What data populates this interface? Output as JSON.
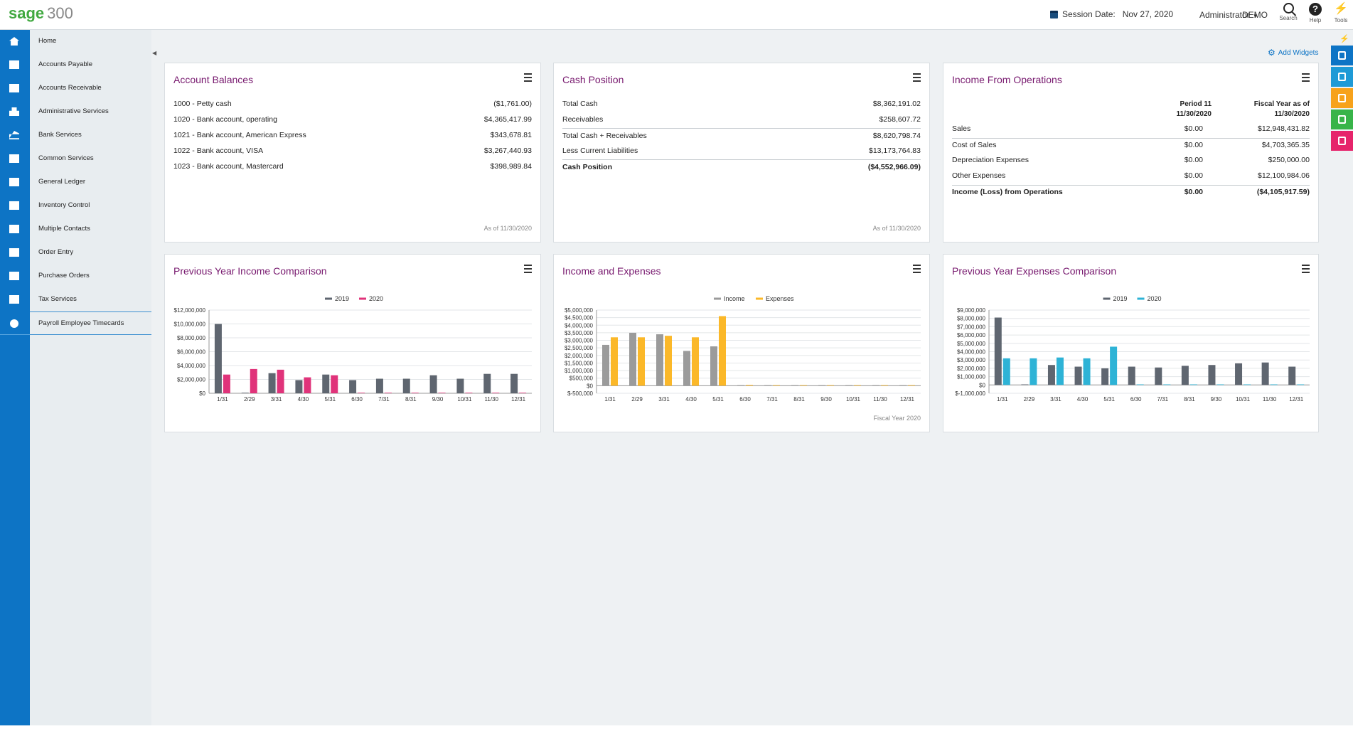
{
  "header": {
    "logo_brand": "sage",
    "logo_number": "300",
    "session_label": "Session Date:",
    "session_date": "Nov 27, 2020",
    "user": "Administrator",
    "company": "DEMO",
    "search_label": "Search",
    "help_label": "Help",
    "tools_label": "Tools"
  },
  "sidebar": {
    "items": [
      {
        "label": "Home",
        "icon": "home-icon"
      },
      {
        "label": "Accounts Payable",
        "icon": "accounts-payable-icon"
      },
      {
        "label": "Accounts Receivable",
        "icon": "accounts-receivable-icon"
      },
      {
        "label": "Administrative Services",
        "icon": "lock-icon"
      },
      {
        "label": "Bank Services",
        "icon": "bank-icon"
      },
      {
        "label": "Common Services",
        "icon": "briefcase-icon"
      },
      {
        "label": "General Ledger",
        "icon": "folder-icon"
      },
      {
        "label": "Inventory Control",
        "icon": "inventory-icon"
      },
      {
        "label": "Multiple Contacts",
        "icon": "contacts-icon"
      },
      {
        "label": "Order Entry",
        "icon": "order-entry-icon"
      },
      {
        "label": "Purchase Orders",
        "icon": "purchase-orders-icon"
      },
      {
        "label": "Tax Services",
        "icon": "tax-icon"
      },
      {
        "label": "Payroll Employee Timecards",
        "icon": "clock-icon"
      }
    ]
  },
  "main": {
    "add_widgets": "Add Widgets"
  },
  "widgets": {
    "account_balances": {
      "title": "Account Balances",
      "rows": [
        {
          "label": "1000 - Petty cash",
          "amount": "($1,761.00)"
        },
        {
          "label": "1020 - Bank account, operating",
          "amount": "$4,365,417.99"
        },
        {
          "label": "1021 - Bank account, American Express",
          "amount": "$343,678.81"
        },
        {
          "label": "1022 - Bank account, VISA",
          "amount": "$3,267,440.93"
        },
        {
          "label": "1023 - Bank account, Mastercard",
          "amount": "$398,989.84"
        }
      ],
      "footer": "As of 11/30/2020"
    },
    "cash_position": {
      "title": "Cash Position",
      "rows": [
        {
          "label": "Total Cash",
          "amount": "$8,362,191.02"
        },
        {
          "label": "Receivables",
          "amount": "$258,607.72"
        },
        {
          "label": "Total Cash + Receivables",
          "amount": "$8,620,798.74"
        },
        {
          "label": "Less Current Liabilities",
          "amount": "$13,173,764.83"
        },
        {
          "label": "Cash Position",
          "amount": "($4,552,966.09)"
        }
      ],
      "footer": "As of 11/30/2020"
    },
    "income_operations": {
      "title": "Income From Operations",
      "col1_line1": "Period  11",
      "col1_line2": "11/30/2020",
      "col2_line1": "Fiscal Year as of",
      "col2_line2": "11/30/2020",
      "rows": [
        {
          "label": "Sales",
          "period": "$0.00",
          "fiscal": "$12,948,431.82"
        },
        {
          "label": "Cost of Sales",
          "period": "$0.00",
          "fiscal": "$4,703,365.35"
        },
        {
          "label": "Depreciation Expenses",
          "period": "$0.00",
          "fiscal": "$250,000.00"
        },
        {
          "label": "Other Expenses",
          "period": "$0.00",
          "fiscal": "$12,100,984.06"
        },
        {
          "label": "Income (Loss) from Operations",
          "period": "$0.00",
          "fiscal": "($4,105,917.59)"
        }
      ]
    },
    "prev_income": {
      "title": "Previous Year Income Comparison"
    },
    "income_expenses": {
      "title": "Income and Expenses",
      "footer": "Fiscal Year 2020"
    },
    "prev_expenses": {
      "title": "Previous Year Expenses Comparison"
    }
  },
  "chart_data": [
    {
      "type": "bar",
      "categories": [
        "1/31",
        "2/29",
        "3/31",
        "4/30",
        "5/31",
        "6/30",
        "7/31",
        "8/31",
        "9/30",
        "10/31",
        "11/30",
        "12/31"
      ],
      "series": [
        {
          "name": "2019",
          "color": "#5f6670",
          "values": [
            10000000,
            50000,
            2900000,
            1900000,
            2700000,
            1900000,
            2100000,
            2100000,
            2600000,
            2100000,
            2800000,
            2800000
          ]
        },
        {
          "name": "2020",
          "color": "#e0337a",
          "values": [
            2700000,
            3500000,
            3400000,
            2300000,
            2600000,
            0,
            0,
            0,
            0,
            0,
            0,
            0
          ]
        }
      ],
      "ylim": [
        0,
        12000000
      ],
      "yticks": [
        "$12,000,000",
        "$10,000,000",
        "$8,000,000",
        "$6,000,000",
        "$4,000,000",
        "$2,000,000",
        "$0"
      ],
      "legend": "top"
    },
    {
      "type": "bar",
      "categories": [
        "1/31",
        "2/29",
        "3/31",
        "4/30",
        "5/31",
        "6/30",
        "7/31",
        "8/31",
        "9/30",
        "10/31",
        "11/30",
        "12/31"
      ],
      "series": [
        {
          "name": "Income",
          "color": "#9b9b9b",
          "values": [
            2700000,
            3500000,
            3400000,
            2300000,
            2600000,
            0,
            0,
            0,
            0,
            0,
            0,
            0
          ]
        },
        {
          "name": "Expenses",
          "color": "#fbb829",
          "values": [
            3200000,
            3200000,
            3300000,
            3200000,
            4600000,
            50000,
            30000,
            30000,
            30000,
            0,
            0,
            0
          ]
        }
      ],
      "ylim": [
        -500000,
        5000000
      ],
      "yticks": [
        "$5,000,000",
        "$4,500,000",
        "$4,000,000",
        "$3,500,000",
        "$3,000,000",
        "$2,500,000",
        "$2,000,000",
        "$1,500,000",
        "$1,000,000",
        "$500,000",
        "$0",
        "$-500,000"
      ],
      "legend": "top"
    },
    {
      "type": "bar",
      "categories": [
        "1/31",
        "2/29",
        "3/31",
        "4/30",
        "5/31",
        "6/30",
        "7/31",
        "8/31",
        "9/30",
        "10/31",
        "11/30",
        "12/31"
      ],
      "series": [
        {
          "name": "2019",
          "color": "#5f6670",
          "values": [
            8100000,
            50000,
            2400000,
            2200000,
            2000000,
            2200000,
            2100000,
            2300000,
            2400000,
            2600000,
            2700000,
            2200000
          ]
        },
        {
          "name": "2020",
          "color": "#2eb3d6",
          "values": [
            3200000,
            3200000,
            3300000,
            3200000,
            4600000,
            50000,
            30000,
            30000,
            30000,
            0,
            0,
            0
          ]
        }
      ],
      "ylim": [
        -1000000,
        9000000
      ],
      "yticks": [
        "$9,000,000",
        "$8,000,000",
        "$7,000,000",
        "$6,000,000",
        "$5,000,000",
        "$4,000,000",
        "$3,000,000",
        "$2,000,000",
        "$1,000,000",
        "$0",
        "$-1,000,000"
      ],
      "legend": "top"
    }
  ]
}
